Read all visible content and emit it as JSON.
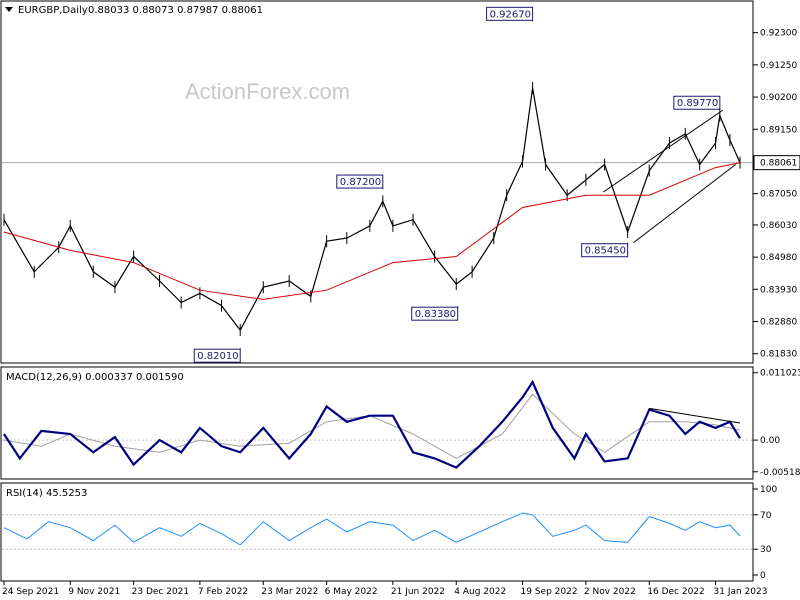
{
  "chart_data": [
    {
      "type": "candlestick",
      "title": "EURGBP,Daily",
      "ohlc_text": "0.88033 0.88073 0.87987 0.88061",
      "watermark": "ActionForex.com",
      "y_ticks": [
        "0.92300",
        "0.91250",
        "0.90200",
        "0.89150",
        "0.88061",
        "0.87050",
        "0.86030",
        "0.84980",
        "0.83930",
        "0.82880",
        "0.81830"
      ],
      "ylim": [
        0.8156,
        0.933
      ],
      "last_price": "0.88061",
      "x_ticks": [
        "24 Sep 2021",
        "9 Nov 2021",
        "23 Dec 2021",
        "7 Feb 2022",
        "23 Mar 2022",
        "6 May 2022",
        "21 Jun 2022",
        "4 Aug 2022",
        "19 Sep 2022",
        "2 Nov 2022",
        "16 Dec 2022",
        "31 Jan 2023"
      ],
      "annotations": [
        {
          "label": "0.92670",
          "date": "2022-09-26",
          "value": 0.9267
        },
        {
          "label": "0.89770",
          "date": "2023-02-03",
          "value": 0.8977
        },
        {
          "label": "0.87200",
          "date": "2022-06-14",
          "value": 0.872
        },
        {
          "label": "0.85450",
          "date": "2022-12-01",
          "value": 0.8545
        },
        {
          "label": "0.83380",
          "date": "2022-08-05",
          "value": 0.8338
        },
        {
          "label": "0.82010",
          "date": "2022-03-07",
          "value": 0.8201
        }
      ],
      "series": [
        {
          "name": "price",
          "x": [
            "2021-09-24",
            "2021-10-15",
            "2021-11-01",
            "2021-11-09",
            "2021-11-25",
            "2021-12-10",
            "2021-12-23",
            "2022-01-10",
            "2022-01-25",
            "2022-02-07",
            "2022-02-22",
            "2022-03-07",
            "2022-03-23",
            "2022-04-10",
            "2022-04-25",
            "2022-05-06",
            "2022-05-20",
            "2022-06-05",
            "2022-06-14",
            "2022-06-21",
            "2022-07-05",
            "2022-07-20",
            "2022-08-04",
            "2022-08-15",
            "2022-08-30",
            "2022-09-08",
            "2022-09-19",
            "2022-09-26",
            "2022-10-05",
            "2022-10-20",
            "2022-11-02",
            "2022-11-15",
            "2022-12-01",
            "2022-12-16",
            "2022-12-30",
            "2023-01-10",
            "2023-01-20",
            "2023-01-31",
            "2023-02-03",
            "2023-02-10",
            "2023-02-17"
          ],
          "values": [
            0.862,
            0.845,
            0.853,
            0.86,
            0.845,
            0.84,
            0.85,
            0.842,
            0.835,
            0.838,
            0.834,
            0.826,
            0.84,
            0.842,
            0.837,
            0.855,
            0.856,
            0.86,
            0.868,
            0.86,
            0.862,
            0.85,
            0.841,
            0.845,
            0.856,
            0.87,
            0.881,
            0.905,
            0.88,
            0.87,
            0.875,
            0.88,
            0.858,
            0.878,
            0.887,
            0.89,
            0.88,
            0.887,
            0.896,
            0.888,
            0.8806
          ]
        },
        {
          "name": "",
          "x": [
            "2021-09-24",
            "2021-11-09",
            "2021-12-23",
            "2022-02-07",
            "2022-03-23",
            "2022-05-06",
            "2022-06-21",
            "2022-08-04",
            "2022-09-19",
            "2022-11-02",
            "2022-12-16",
            "2023-01-31",
            "2023-02-17"
          ],
          "values": [
            0.858,
            0.852,
            0.848,
            0.839,
            0.836,
            0.839,
            0.848,
            0.85,
            0.866,
            0.87,
            0.87,
            0.879,
            0.8806
          ]
        }
      ]
    },
    {
      "type": "line",
      "title": "MACD(12,26,9) 0.000337 0.001590",
      "y_ticks": [
        "0.011023",
        "0.00",
        "-0.005182"
      ],
      "ylim": [
        -0.0062,
        0.0118
      ],
      "series": [
        {
          "name": "",
          "x": [
            "2021-09-24",
            "2021-10-05",
            "2021-10-20",
            "2021-11-09",
            "2021-11-25",
            "2021-12-10",
            "2021-12-23",
            "2022-01-10",
            "2022-01-25",
            "2022-02-07",
            "2022-02-22",
            "2022-03-07",
            "2022-03-23",
            "2022-04-10",
            "2022-04-25",
            "2022-05-06",
            "2022-05-20",
            "2022-06-05",
            "2022-06-21",
            "2022-07-05",
            "2022-07-20",
            "2022-08-04",
            "2022-08-20",
            "2022-09-05",
            "2022-09-19",
            "2022-09-26",
            "2022-10-10",
            "2022-10-25",
            "2022-11-02",
            "2022-11-15",
            "2022-12-01",
            "2022-12-16",
            "2022-12-30",
            "2023-01-10",
            "2023-01-20",
            "2023-01-31",
            "2023-02-10",
            "2023-02-17"
          ],
          "values": [
            0.001,
            -0.003,
            0.0015,
            0.001,
            -0.002,
            0.0005,
            -0.004,
            0.0,
            -0.002,
            0.002,
            -0.001,
            -0.002,
            0.002,
            -0.003,
            0.001,
            0.0055,
            0.003,
            0.004,
            0.004,
            -0.002,
            -0.003,
            -0.0045,
            -0.001,
            0.003,
            0.007,
            0.0095,
            0.002,
            -0.003,
            0.001,
            -0.0035,
            -0.003,
            0.005,
            0.004,
            0.001,
            0.003,
            0.002,
            0.003,
            0.0003
          ]
        },
        {
          "name": "",
          "x": [
            "2021-09-24",
            "2021-10-20",
            "2021-11-09",
            "2021-12-10",
            "2022-01-10",
            "2022-02-07",
            "2022-03-07",
            "2022-04-10",
            "2022-05-06",
            "2022-06-05",
            "2022-07-05",
            "2022-08-04",
            "2022-09-05",
            "2022-09-26",
            "2022-10-25",
            "2022-11-15",
            "2022-12-16",
            "2023-01-10",
            "2023-01-31",
            "2023-02-17"
          ],
          "values": [
            0.0,
            -0.001,
            0.001,
            -0.001,
            -0.002,
            0.0,
            -0.001,
            -0.0005,
            0.003,
            0.004,
            0.001,
            -0.003,
            0.001,
            0.0075,
            0.001,
            -0.002,
            0.003,
            0.003,
            0.0025,
            0.0016
          ]
        }
      ]
    },
    {
      "type": "line",
      "title": "RSI(14) 45.5253",
      "y_ticks": [
        "100",
        "70",
        "30",
        "0"
      ],
      "ylim": [
        0,
        100
      ],
      "series": [
        {
          "name": "",
          "x": [
            "2021-09-24",
            "2021-10-10",
            "2021-10-25",
            "2021-11-09",
            "2021-11-25",
            "2021-12-10",
            "2021-12-23",
            "2022-01-10",
            "2022-01-25",
            "2022-02-07",
            "2022-02-22",
            "2022-03-07",
            "2022-03-23",
            "2022-04-10",
            "2022-04-25",
            "2022-05-06",
            "2022-05-20",
            "2022-06-05",
            "2022-06-21",
            "2022-07-05",
            "2022-07-20",
            "2022-08-04",
            "2022-08-20",
            "2022-09-05",
            "2022-09-19",
            "2022-09-26",
            "2022-10-10",
            "2022-10-25",
            "2022-11-02",
            "2022-11-15",
            "2022-12-01",
            "2022-12-16",
            "2022-12-30",
            "2023-01-10",
            "2023-01-20",
            "2023-01-31",
            "2023-02-10",
            "2023-02-17"
          ],
          "values": [
            55,
            42,
            62,
            55,
            40,
            58,
            38,
            55,
            45,
            60,
            48,
            35,
            62,
            40,
            55,
            65,
            50,
            62,
            58,
            40,
            52,
            38,
            50,
            62,
            72,
            70,
            45,
            52,
            58,
            40,
            38,
            68,
            60,
            52,
            62,
            55,
            58,
            45.5
          ]
        }
      ]
    }
  ]
}
